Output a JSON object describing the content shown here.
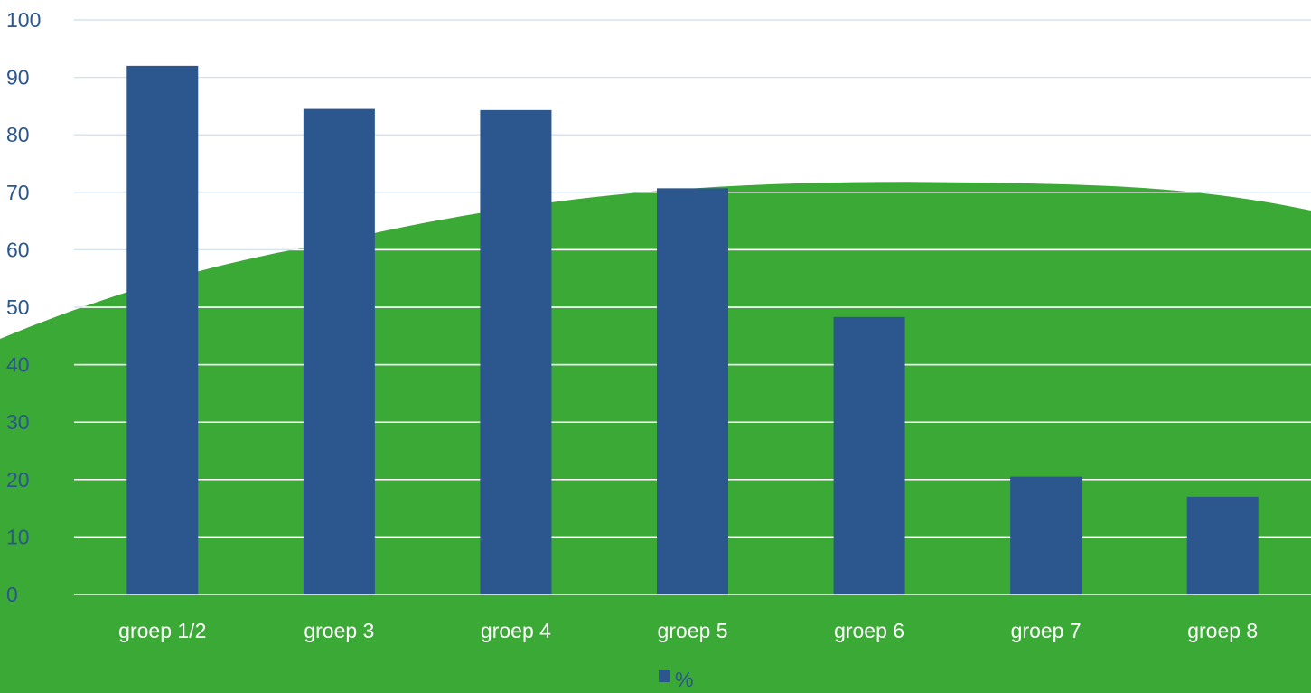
{
  "colors": {
    "bar": "#2B568E",
    "background_hill": "#3BA935",
    "axis_text": "#2B568E",
    "category_text": "#ffffff",
    "grid_on_white": "#D6E4F0",
    "grid_on_green": "#ffffff"
  },
  "chart_data": {
    "type": "bar",
    "categories": [
      "groep 1/2",
      "groep 3",
      "groep 4",
      "groep 5",
      "groep 6",
      "groep 7",
      "groep 8"
    ],
    "series": [
      {
        "name": "%",
        "values": [
          92,
          84.5,
          84.3,
          70.7,
          48.3,
          20.5,
          17
        ]
      }
    ],
    "ylim": [
      0,
      100
    ],
    "yticks": [
      0,
      10,
      20,
      30,
      40,
      50,
      60,
      70,
      80,
      90,
      100
    ],
    "grid": true,
    "legend": {
      "position": "bottom",
      "entries": [
        "%"
      ]
    },
    "title": "",
    "xlabel": "",
    "ylabel": ""
  }
}
